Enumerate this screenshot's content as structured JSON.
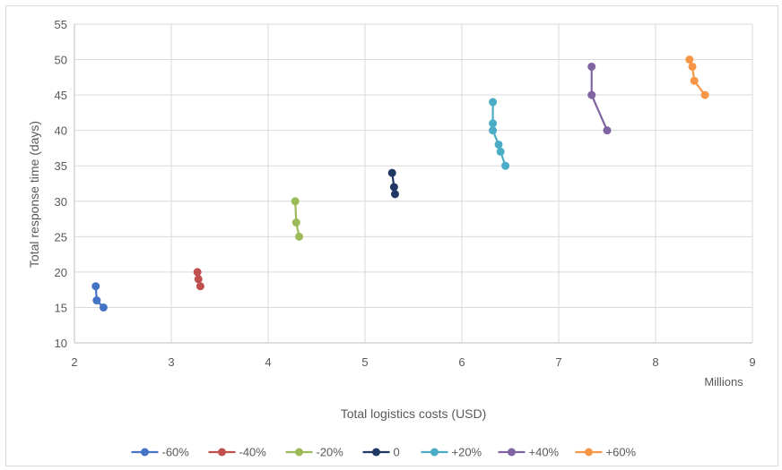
{
  "chart_data": {
    "type": "scatter",
    "title": "",
    "xlabel": "Total logistics costs (USD)",
    "x_unit_label": "Millions",
    "ylabel": "Total response time (days)",
    "xlim": [
      2,
      9
    ],
    "ylim": [
      10,
      55
    ],
    "x_ticks": [
      2,
      3,
      4,
      5,
      6,
      7,
      8,
      9
    ],
    "y_ticks": [
      10,
      15,
      20,
      25,
      30,
      35,
      40,
      45,
      50,
      55
    ],
    "grid": true,
    "legend_position": "bottom",
    "series": [
      {
        "name": "-60%",
        "color": "#4472c4",
        "points": [
          [
            2.22,
            18
          ],
          [
            2.23,
            16
          ],
          [
            2.3,
            15
          ]
        ]
      },
      {
        "name": "-40%",
        "color": "#c0504d",
        "points": [
          [
            3.27,
            20
          ],
          [
            3.28,
            19
          ],
          [
            3.3,
            18
          ]
        ]
      },
      {
        "name": "-20%",
        "color": "#9bbb59",
        "points": [
          [
            4.28,
            30
          ],
          [
            4.29,
            27
          ],
          [
            4.32,
            25
          ]
        ]
      },
      {
        "name": "0",
        "color": "#1f3864",
        "points": [
          [
            5.28,
            34
          ],
          [
            5.3,
            32
          ],
          [
            5.31,
            31
          ]
        ]
      },
      {
        "name": "+20%",
        "color": "#4bacc6",
        "points": [
          [
            6.32,
            44
          ],
          [
            6.32,
            41
          ],
          [
            6.32,
            40
          ],
          [
            6.38,
            38
          ],
          [
            6.4,
            37
          ],
          [
            6.45,
            35
          ]
        ]
      },
      {
        "name": "+40%",
        "color": "#8064a2",
        "points": [
          [
            7.34,
            49
          ],
          [
            7.34,
            45
          ],
          [
            7.5,
            40
          ]
        ]
      },
      {
        "name": "+60%",
        "color": "#f79646",
        "points": [
          [
            8.35,
            50
          ],
          [
            8.38,
            49
          ],
          [
            8.4,
            47
          ],
          [
            8.51,
            45
          ]
        ]
      }
    ]
  }
}
